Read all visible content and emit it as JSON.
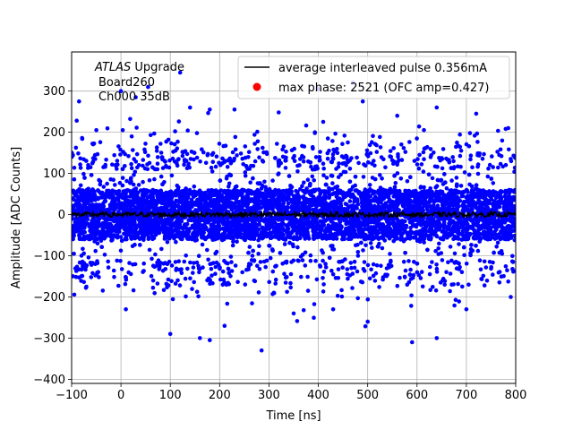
{
  "chart_data": {
    "type": "scatter",
    "title": "",
    "xlabel": "Time [ns]",
    "ylabel": "Amplitude [ADC Counts]",
    "xlim": [
      -100,
      800
    ],
    "ylim": [
      -410,
      395
    ],
    "xticks": [
      -100,
      0,
      100,
      200,
      300,
      400,
      500,
      600,
      700,
      800
    ],
    "yticks": [
      -400,
      -300,
      -200,
      -100,
      0,
      100,
      200,
      300
    ],
    "xtick_labels": [
      "−100",
      "0",
      "100",
      "200",
      "300",
      "400",
      "500",
      "600",
      "700",
      "800"
    ],
    "ytick_labels": [
      "−400",
      "−300",
      "−200",
      "−100",
      "0",
      "100",
      "200",
      "300"
    ],
    "grid": true,
    "legend_position": "top-right",
    "annotation": {
      "line1_italic": "ATLAS",
      "line1_rest": " Upgrade",
      "line2": "Board260",
      "line3": "Ch000 35dB"
    },
    "series": [
      {
        "name": "average interleaved pulse 0.356mA",
        "kind": "line",
        "color": "#000000",
        "x_range": [
          -100,
          800
        ],
        "approx_level": 0,
        "approx_amplitude": 6
      },
      {
        "name": "max phase: 2521 (OFC amp=0.427)",
        "kind": "marker",
        "color": "#ff0000"
      },
      {
        "kind": "scatter",
        "color": "#0000ff",
        "x_range": [
          -100,
          800
        ],
        "core_band": [
          -60,
          60
        ],
        "outer_band": [
          -150,
          150
        ],
        "outliers": [
          {
            "x": -85,
            "y": 275
          },
          {
            "x": -50,
            "y": 205
          },
          {
            "x": 0,
            "y": 300
          },
          {
            "x": 30,
            "y": 285
          },
          {
            "x": 55,
            "y": 310
          },
          {
            "x": 120,
            "y": 345
          },
          {
            "x": 140,
            "y": 260
          },
          {
            "x": 180,
            "y": 255
          },
          {
            "x": 230,
            "y": 255
          },
          {
            "x": 400,
            "y": 305
          },
          {
            "x": 470,
            "y": 320
          },
          {
            "x": 490,
            "y": 275
          },
          {
            "x": 560,
            "y": 240
          },
          {
            "x": 640,
            "y": 260
          },
          {
            "x": 720,
            "y": 245
          },
          {
            "x": 785,
            "y": 210
          },
          {
            "x": -70,
            "y": -175
          },
          {
            "x": 10,
            "y": -230
          },
          {
            "x": 100,
            "y": -290
          },
          {
            "x": 160,
            "y": -300
          },
          {
            "x": 180,
            "y": -305
          },
          {
            "x": 210,
            "y": -270
          },
          {
            "x": 285,
            "y": -330
          },
          {
            "x": 350,
            "y": -240
          },
          {
            "x": 430,
            "y": -230
          },
          {
            "x": 500,
            "y": -260
          },
          {
            "x": 590,
            "y": -310
          },
          {
            "x": 640,
            "y": -300
          },
          {
            "x": 700,
            "y": -230
          },
          {
            "x": 790,
            "y": -200
          }
        ],
        "point_count": 6000
      }
    ]
  }
}
